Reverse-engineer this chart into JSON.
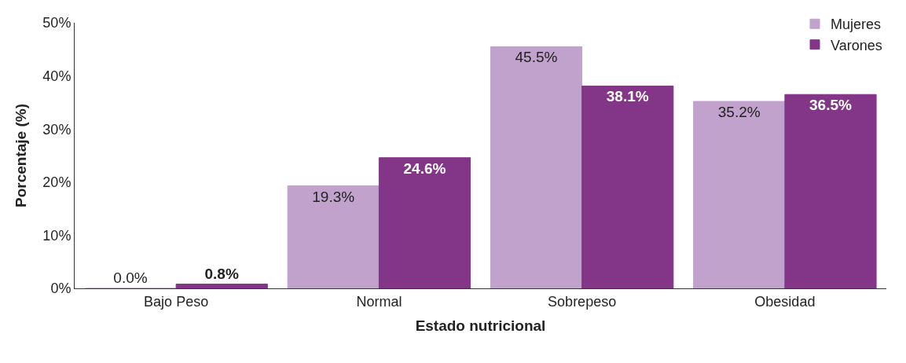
{
  "chart_data": {
    "type": "bar",
    "xlabel": "Estado nutricional",
    "ylabel": "Porcentaje (%)",
    "categories": [
      "Bajo Peso",
      "Normal",
      "Sobrepeso",
      "Obesidad"
    ],
    "series": [
      {
        "name": "Mujeres",
        "color": "#c0a2cc",
        "values": [
          0.0,
          19.3,
          45.5,
          35.2
        ],
        "value_labels": [
          "0.0%",
          "19.3%",
          "45.5%",
          "35.2%"
        ]
      },
      {
        "name": "Varones",
        "color": "#833687",
        "values": [
          0.8,
          24.6,
          38.1,
          36.5
        ],
        "value_labels": [
          "0.8%",
          "24.6%",
          "38.1%",
          "36.5%"
        ]
      }
    ],
    "ylim": [
      0,
      50
    ],
    "yticks": [
      {
        "value": 0,
        "label": "0%"
      },
      {
        "value": 10,
        "label": "10%"
      },
      {
        "value": 20,
        "label": "20%"
      },
      {
        "value": 30,
        "label": "30%"
      },
      {
        "value": 40,
        "label": "40%"
      },
      {
        "value": 50,
        "label": "50%"
      }
    ],
    "legend": "top right"
  }
}
